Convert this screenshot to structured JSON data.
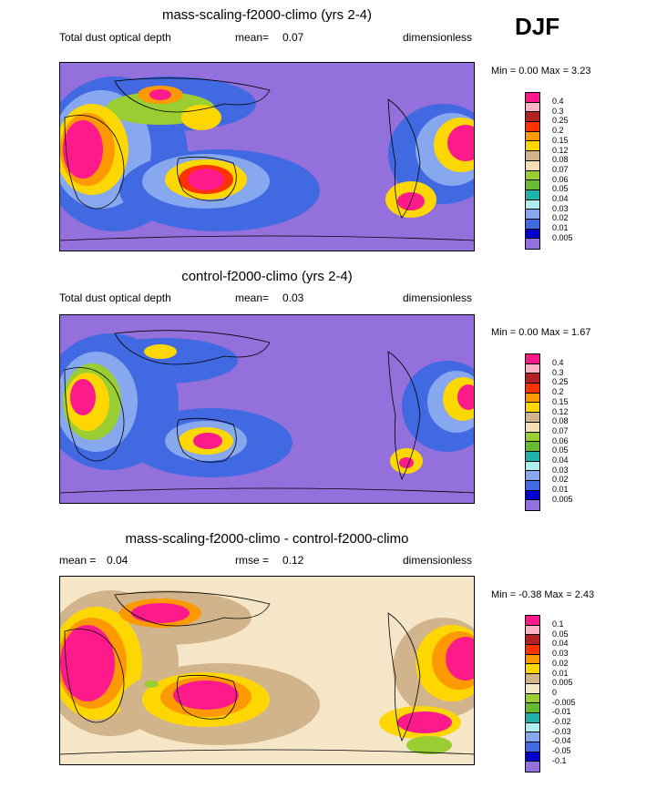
{
  "season": "DJF",
  "palettes": {
    "abs": [
      "#ff1a8c",
      "#ffb3c6",
      "#b22222",
      "#ff3300",
      "#ff9900",
      "#ffd700",
      "#d2b48c",
      "#f5deb3",
      "#9acd32",
      "#66bb33",
      "#20b2aa",
      "#afeeee",
      "#87a8ee",
      "#4169e1",
      "#0000cd",
      "#9370db"
    ],
    "diff": [
      "#ff1a8c",
      "#ffb3c6",
      "#b22222",
      "#ff3300",
      "#ff9900",
      "#ffd700",
      "#d2b48c",
      "#f5e6c8",
      "#9acd32",
      "#66bb33",
      "#20b2aa",
      "#afeeee",
      "#87a8ee",
      "#4169e1",
      "#0000cd",
      "#9370db"
    ]
  },
  "panels": [
    {
      "title": "mass-scaling-f2000-climo (yrs 2-4)",
      "left_label": "Total dust optical depth",
      "center_label": "mean=",
      "center_value": "0.07",
      "right_label": "dimensionless",
      "minmax": "Min =   0.00 Max =   3.23",
      "levels": [
        "0.4",
        "0.3",
        "0.25",
        "0.2",
        "0.15",
        "0.12",
        "0.08",
        "0.07",
        "0.06",
        "0.05",
        "0.04",
        "0.03",
        "0.02",
        "0.01",
        "0.005"
      ]
    },
    {
      "title": "control-f2000-climo (yrs 2-4)",
      "left_label": "Total dust optical depth",
      "center_label": "mean=",
      "center_value": "0.03",
      "right_label": "dimensionless",
      "minmax": "Min =   0.00 Max =   1.67",
      "levels": [
        "0.4",
        "0.3",
        "0.25",
        "0.2",
        "0.15",
        "0.12",
        "0.08",
        "0.07",
        "0.06",
        "0.05",
        "0.04",
        "0.03",
        "0.02",
        "0.01",
        "0.005"
      ]
    },
    {
      "title": "mass-scaling-f2000-climo - control-f2000-climo",
      "left_label": "mean =",
      "left_value": "0.04",
      "center_label": "rmse =",
      "center_value": "0.12",
      "right_label": "dimensionless",
      "minmax": "Min =  -0.38 Max =   2.43",
      "levels": [
        "0.1",
        "0.05",
        "0.04",
        "0.03",
        "0.02",
        "0.01",
        "0.005",
        "0",
        "-0.005",
        "-0.01",
        "-0.02",
        "-0.03",
        "-0.04",
        "-0.05",
        "-0.1"
      ]
    }
  ],
  "chart_data": [
    {
      "type": "heatmap",
      "title": "mass-scaling-f2000-climo (yrs 2-4)",
      "variable": "Total dust optical depth",
      "units": "dimensionless",
      "mean": 0.07,
      "min": 0.0,
      "max": 3.23,
      "contour_levels": [
        0.005,
        0.01,
        0.02,
        0.03,
        0.04,
        0.05,
        0.06,
        0.07,
        0.08,
        0.12,
        0.15,
        0.2,
        0.25,
        0.3,
        0.4
      ]
    },
    {
      "type": "heatmap",
      "title": "control-f2000-climo (yrs 2-4)",
      "variable": "Total dust optical depth",
      "units": "dimensionless",
      "mean": 0.03,
      "min": 0.0,
      "max": 1.67,
      "contour_levels": [
        0.005,
        0.01,
        0.02,
        0.03,
        0.04,
        0.05,
        0.06,
        0.07,
        0.08,
        0.12,
        0.15,
        0.2,
        0.25,
        0.3,
        0.4
      ]
    },
    {
      "type": "heatmap",
      "title": "mass-scaling-f2000-climo - control-f2000-climo",
      "units": "dimensionless",
      "mean": 0.04,
      "rmse": 0.12,
      "min": -0.38,
      "max": 2.43,
      "contour_levels": [
        -0.1,
        -0.05,
        -0.04,
        -0.03,
        -0.02,
        -0.01,
        -0.005,
        0,
        0.005,
        0.01,
        0.02,
        0.03,
        0.04,
        0.05,
        0.1
      ]
    }
  ]
}
